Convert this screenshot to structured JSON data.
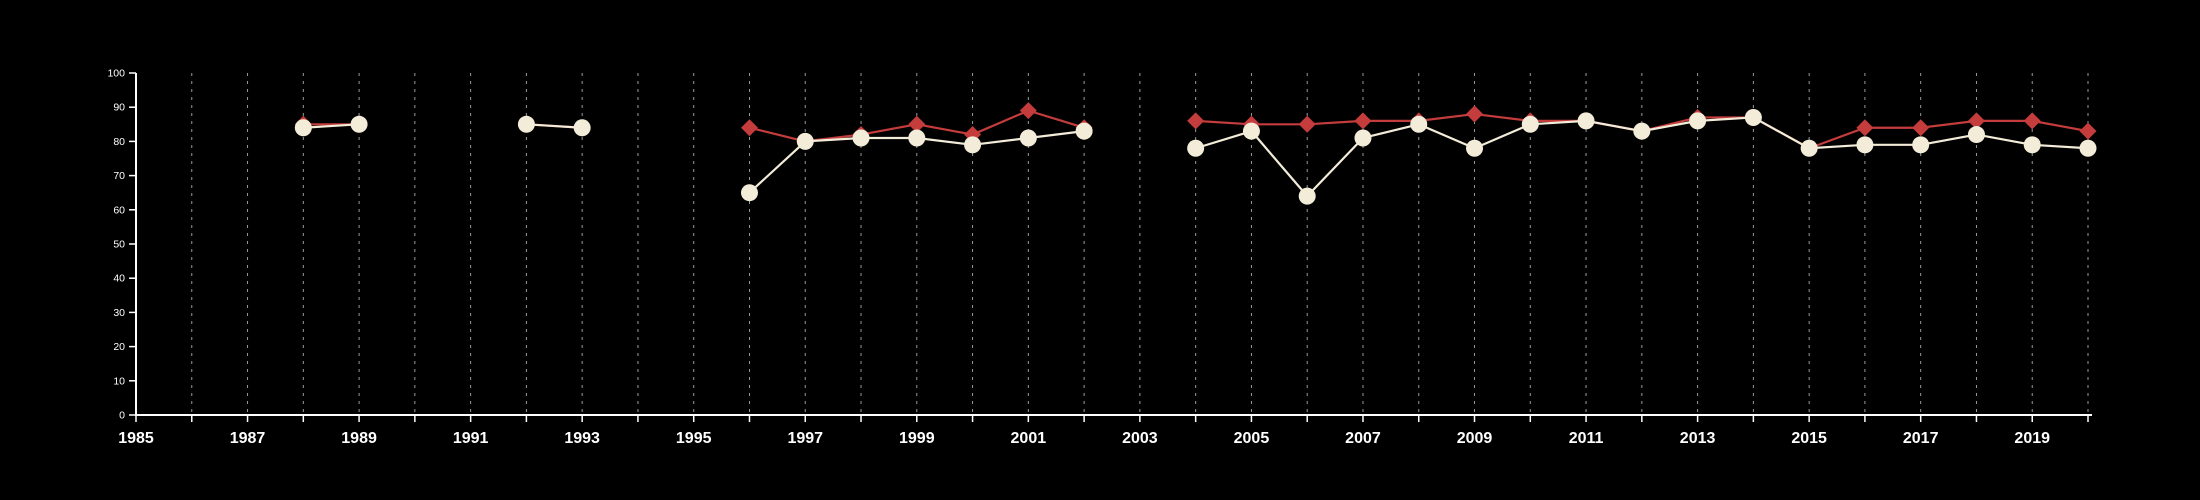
{
  "page": {
    "background": "#000000"
  },
  "chart_data": {
    "type": "line",
    "title": "",
    "xlabel": "",
    "ylabel": "",
    "legend": "none",
    "grid": "vertical-dashed",
    "grid_color": "#9a9a9a",
    "axis_color": "#ffffff",
    "text_color": "#ffffff",
    "ylim": [
      0,
      100
    ],
    "yticks": [
      0,
      10,
      20,
      30,
      40,
      50,
      60,
      70,
      80,
      90,
      100
    ],
    "x": [
      1985,
      1986,
      1987,
      1988,
      1989,
      1990,
      1991,
      1992,
      1993,
      1994,
      1995,
      1996,
      1997,
      1998,
      1999,
      2000,
      2001,
      2002,
      2003,
      2004,
      2005,
      2006,
      2007,
      2008,
      2009,
      2010,
      2011,
      2012,
      2013,
      2014,
      2015,
      2016,
      2017,
      2018,
      2019,
      2020
    ],
    "xtick_label_years": [
      1985,
      1987,
      1989,
      1991,
      1993,
      1995,
      1997,
      1999,
      2001,
      2003,
      2005,
      2007,
      2009,
      2011,
      2013,
      2015,
      2017,
      2019
    ],
    "series": [
      {
        "name": "red-diamond-series",
        "marker": "diamond",
        "color": "#c43c3c",
        "line_color": "#c43c3c",
        "values": [
          null,
          null,
          null,
          85,
          85,
          null,
          null,
          85,
          84,
          null,
          null,
          84,
          80,
          82,
          85,
          82,
          89,
          84,
          null,
          86,
          85,
          85,
          86,
          86,
          88,
          86,
          86,
          83,
          87,
          87,
          78,
          84,
          84,
          86,
          86,
          83
        ]
      },
      {
        "name": "cream-circle-series",
        "marker": "circle",
        "color": "#f3ecd8",
        "line_color": "#f3ecd8",
        "values": [
          null,
          null,
          null,
          84,
          85,
          null,
          null,
          85,
          84,
          null,
          null,
          65,
          80,
          81,
          81,
          79,
          81,
          83,
          null,
          78,
          83,
          64,
          81,
          85,
          78,
          85,
          86,
          83,
          86,
          87,
          78,
          79,
          79,
          82,
          79,
          78
        ]
      }
    ]
  }
}
